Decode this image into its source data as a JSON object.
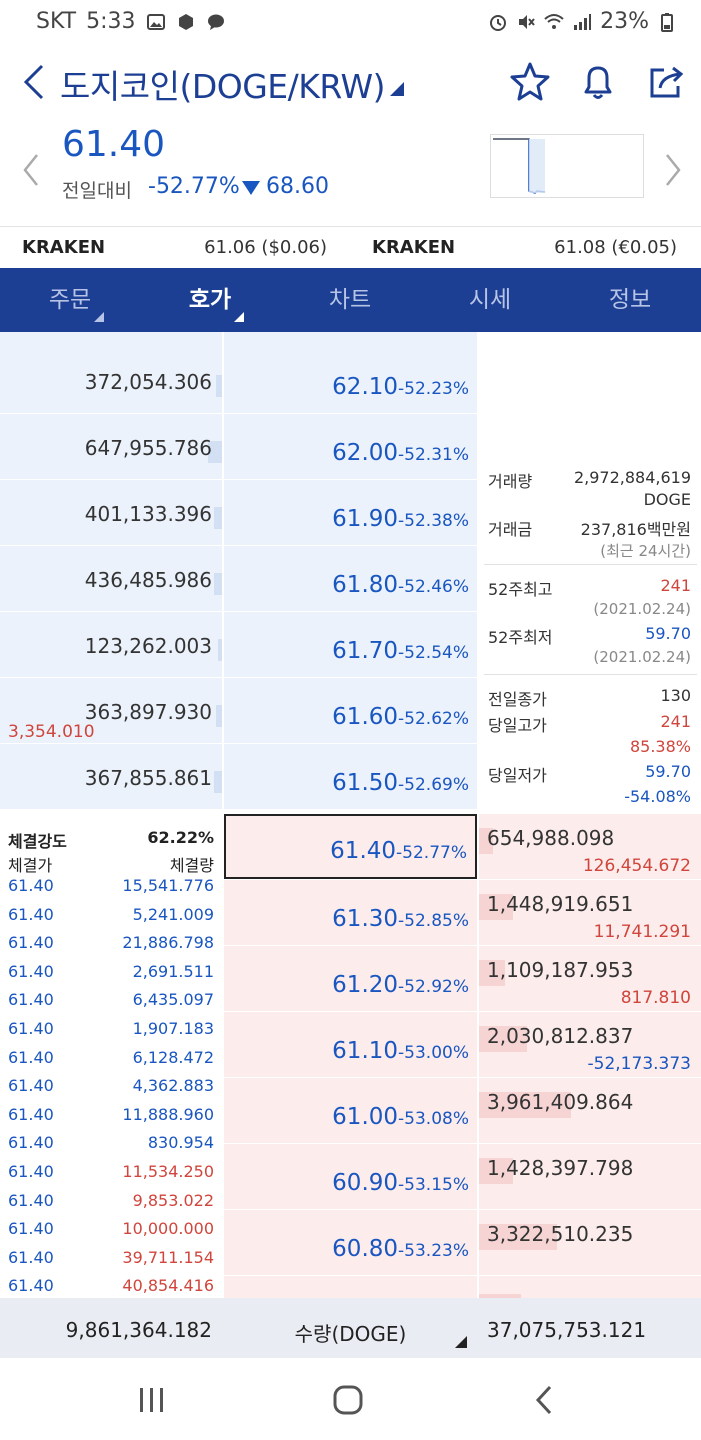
{
  "status_bar": {
    "carrier": "SKT",
    "time": "5:33",
    "battery": "23%"
  },
  "header": {
    "title": "도지코인(DOGE/KRW)",
    "icons": [
      "back-icon",
      "star-icon",
      "bell-icon",
      "share-icon"
    ]
  },
  "quote": {
    "price": "61.40",
    "prev_label": "전일대비",
    "change_pct": "-52.77%",
    "change_amount": "68.60"
  },
  "exchanges": [
    {
      "name": "KRAKEN",
      "value": "61.06 ($0.06)"
    },
    {
      "name": "KRAKEN",
      "value": "61.08 (€0.05)"
    }
  ],
  "tabs": [
    {
      "label": "주문"
    },
    {
      "label": "호가"
    },
    {
      "label": "차트"
    },
    {
      "label": "시세"
    },
    {
      "label": "정보"
    }
  ],
  "asks": [
    {
      "volume": "372,054.306",
      "price": "62.10",
      "rate": "-52.23%",
      "bar": 0.03
    },
    {
      "volume": "647,955.786",
      "price": "62.00",
      "rate": "-52.31%",
      "bar": 0.07
    },
    {
      "volume": "401,133.396",
      "price": "61.90",
      "rate": "-52.38%",
      "bar": 0.04
    },
    {
      "volume": "436,485.986",
      "price": "61.80",
      "rate": "-52.46%",
      "bar": 0.04
    },
    {
      "volume": "123,262.003",
      "price": "61.70",
      "rate": "-52.54%",
      "bar": 0.01
    },
    {
      "volume": "363,897.930",
      "price": "61.60",
      "rate": "-52.62%",
      "bar": 0.03,
      "sub": "3,354.010"
    },
    {
      "volume": "367,855.861",
      "price": "61.50",
      "rate": "-52.69%",
      "bar": 0.04
    }
  ],
  "bids": [
    {
      "price": "61.40",
      "rate": "-52.77%",
      "volume": "654,988.098",
      "sub": "126,454.672",
      "sub_color": "#d0453c",
      "bar": 0.07,
      "current": true
    },
    {
      "price": "61.30",
      "rate": "-52.85%",
      "volume": "1,448,919.651",
      "sub": "11,741.291",
      "sub_color": "#d0453c",
      "bar": 0.17
    },
    {
      "price": "61.20",
      "rate": "-52.92%",
      "volume": "1,109,187.953",
      "sub": "817.810",
      "sub_color": "#d0453c",
      "bar": 0.13
    },
    {
      "price": "61.10",
      "rate": "-53.00%",
      "volume": "2,030,812.837",
      "sub": "-52,173.373",
      "sub_color": "#1a56c0",
      "bar": 0.24
    },
    {
      "price": "61.00",
      "rate": "-53.08%",
      "volume": "3,961,409.864",
      "sub": "",
      "sub_color": "#d0453c",
      "bar": 0.46
    },
    {
      "price": "60.90",
      "rate": "-53.15%",
      "volume": "1,428,397.798",
      "sub": "",
      "sub_color": "#d0453c",
      "bar": 0.17
    },
    {
      "price": "60.80",
      "rate": "-53.23%",
      "volume": "3,322,510.235",
      "sub": "",
      "sub_color": "#d0453c",
      "bar": 0.39
    }
  ],
  "info": {
    "volume_label": "거래량",
    "volume_value": "2,972,884,619",
    "volume_unit": "DOGE",
    "amount_label": "거래금",
    "amount_value": "237,816백만원",
    "amount_note": "(최근 24시간)",
    "high52_label": "52주최고",
    "high52_value": "241",
    "high52_date": "(2021.02.24)",
    "low52_label": "52주최저",
    "low52_value": "59.70",
    "low52_date": "(2021.02.24)",
    "prev_close_label": "전일종가",
    "prev_close_value": "130",
    "day_high_label": "당일고가",
    "day_high_value": "241",
    "day_high_pct": "85.38%",
    "day_low_label": "당일저가",
    "day_low_value": "59.70",
    "day_low_pct": "-54.08%"
  },
  "trades": {
    "strength_label": "체결강도",
    "strength_value": "62.22%",
    "price_header": "체결가",
    "qty_header": "체결량",
    "rows": [
      {
        "price": "61.40",
        "qty": "15,541.776",
        "color": "#1a56c0"
      },
      {
        "price": "61.40",
        "qty": "5,241.009",
        "color": "#1a56c0"
      },
      {
        "price": "61.40",
        "qty": "21,886.798",
        "color": "#1a56c0"
      },
      {
        "price": "61.40",
        "qty": "2,691.511",
        "color": "#1a56c0"
      },
      {
        "price": "61.40",
        "qty": "6,435.097",
        "color": "#1a56c0"
      },
      {
        "price": "61.40",
        "qty": "1,907.183",
        "color": "#1a56c0"
      },
      {
        "price": "61.40",
        "qty": "6,128.472",
        "color": "#1a56c0"
      },
      {
        "price": "61.40",
        "qty": "4,362.883",
        "color": "#1a56c0"
      },
      {
        "price": "61.40",
        "qty": "11,888.960",
        "color": "#1a56c0"
      },
      {
        "price": "61.40",
        "qty": "830.954",
        "color": "#1a56c0"
      },
      {
        "price": "61.40",
        "qty": "11,534.250",
        "color": "#d0453c"
      },
      {
        "price": "61.40",
        "qty": "9,853.022",
        "color": "#d0453c"
      },
      {
        "price": "61.40",
        "qty": "10,000.000",
        "color": "#d0453c"
      },
      {
        "price": "61.40",
        "qty": "39,711.154",
        "color": "#d0453c"
      },
      {
        "price": "61.40",
        "qty": "40,854.416",
        "color": "#d0453c"
      }
    ]
  },
  "footer": {
    "ask_total": "9,861,364.182",
    "unit_label": "수량(DOGE)",
    "bid_total": "37,075,753.121"
  },
  "colors": {
    "brand": "#1c3f94",
    "down": "#1a56c0",
    "up": "#d0453c",
    "ask_bg": "#ebf2fb",
    "bid_bg": "#fcecec"
  }
}
